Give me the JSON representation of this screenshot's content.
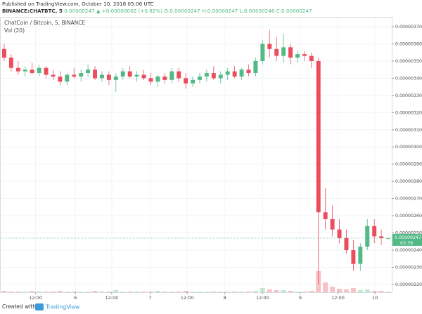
{
  "header": {
    "published": "Published on TradingView.com, October 10, 2018 05:06 UTC",
    "symbol": "BINANCE:CHATBTC, 5",
    "last": "0.00000247",
    "arrow": "▲",
    "change": "+0.00000002 (+0.82%)",
    "ohlc": "O:0.00000247 H:0.00000247 L:0.00000246 C:0.00000247"
  },
  "chart_data": {
    "type": "candlestick",
    "legend_title": "ChatCoin / Bitcoin, 5, BINANCE",
    "volume_title": "Vol (20)",
    "open": [
      3.57e-06,
      3.52e-06,
      3.46e-06,
      3.44e-06,
      3.45e-06,
      3.43e-06,
      3.46e-06,
      3.42e-06,
      3.41e-06,
      3.38e-06,
      3.42e-06,
      3.41e-06,
      3.43e-06,
      3.45e-06,
      3.4e-06,
      3.42e-06,
      3.39e-06,
      3.41e-06,
      3.44e-06,
      3.41e-06,
      3.42e-06,
      3.4e-06,
      3.38e-06,
      3.41e-06,
      3.39e-06,
      3.44e-06,
      3.4e-06,
      3.37e-06,
      3.39e-06,
      3.41e-06,
      3.43e-06,
      3.4e-06,
      3.42e-06,
      3.44e-06,
      3.41e-06,
      3.45e-06,
      3.43e-06,
      3.5e-06,
      3.6e-06,
      3.57e-06,
      3.53e-06,
      3.58e-06,
      3.52e-06,
      3.54e-06,
      3.53e-06,
      3.5e-06,
      2.62e-06,
      2.58e-06,
      2.52e-06,
      2.47e-06,
      2.4e-06,
      2.32e-06,
      2.42e-06,
      2.54e-06,
      2.48e-06,
      2.47e-06
    ],
    "high": [
      3.6e-06,
      3.54e-06,
      3.5e-06,
      3.47e-06,
      3.49e-06,
      3.48e-06,
      3.47e-06,
      3.45e-06,
      3.44e-06,
      3.43e-06,
      3.46e-06,
      3.45e-06,
      3.48e-06,
      3.47e-06,
      3.44e-06,
      3.44e-06,
      3.43e-06,
      3.46e-06,
      3.47e-06,
      3.44e-06,
      3.45e-06,
      3.43e-06,
      3.42e-06,
      3.43e-06,
      3.46e-06,
      3.46e-06,
      3.43e-06,
      3.41e-06,
      3.43e-06,
      3.45e-06,
      3.47e-06,
      3.44e-06,
      3.46e-06,
      3.47e-06,
      3.46e-06,
      3.48e-06,
      3.52e-06,
      3.62e-06,
      3.68e-06,
      3.64e-06,
      3.66e-06,
      3.6e-06,
      3.56e-06,
      3.56e-06,
      3.55e-06,
      3.52e-06,
      2.76e-06,
      2.66e-06,
      2.58e-06,
      2.52e-06,
      2.46e-06,
      2.44e-06,
      2.58e-06,
      2.58e-06,
      2.52e-06,
      2.47e-06
    ],
    "low": [
      3.5e-06,
      3.44e-06,
      3.42e-06,
      3.41e-06,
      3.42e-06,
      3.41e-06,
      3.4e-06,
      3.39e-06,
      3.36e-06,
      3.36e-06,
      3.4e-06,
      3.38e-06,
      3.41e-06,
      3.39e-06,
      3.38e-06,
      3.36e-06,
      3.32e-06,
      3.39e-06,
      3.4e-06,
      3.38e-06,
      3.39e-06,
      3.36e-06,
      3.35e-06,
      3.37e-06,
      3.37e-06,
      3.38e-06,
      3.34e-06,
      3.35e-06,
      3.37e-06,
      3.38e-06,
      3.39e-06,
      3.37e-06,
      3.39e-06,
      3.4e-06,
      3.39e-06,
      3.41e-06,
      3.41e-06,
      3.48e-06,
      3.52e-06,
      3.5e-06,
      3.49e-06,
      3.48e-06,
      3.49e-06,
      3.5e-06,
      3.46e-06,
      2.2e-06,
      2.52e-06,
      2.48e-06,
      2.44e-06,
      2.38e-06,
      2.28e-06,
      2.28e-06,
      2.4e-06,
      2.44e-06,
      2.43e-06,
      2.46e-06
    ],
    "close": [
      3.52e-06,
      3.46e-06,
      3.44e-06,
      3.45e-06,
      3.43e-06,
      3.46e-06,
      3.42e-06,
      3.41e-06,
      3.38e-06,
      3.42e-06,
      3.41e-06,
      3.43e-06,
      3.45e-06,
      3.4e-06,
      3.42e-06,
      3.39e-06,
      3.41e-06,
      3.44e-06,
      3.41e-06,
      3.42e-06,
      3.4e-06,
      3.38e-06,
      3.41e-06,
      3.39e-06,
      3.44e-06,
      3.4e-06,
      3.37e-06,
      3.39e-06,
      3.41e-06,
      3.43e-06,
      3.4e-06,
      3.42e-06,
      3.44e-06,
      3.41e-06,
      3.45e-06,
      3.43e-06,
      3.5e-06,
      3.6e-06,
      3.57e-06,
      3.53e-06,
      3.58e-06,
      3.52e-06,
      3.54e-06,
      3.53e-06,
      3.5e-06,
      2.62e-06,
      2.58e-06,
      2.52e-06,
      2.47e-06,
      2.4e-06,
      2.32e-06,
      2.42e-06,
      2.54e-06,
      2.48e-06,
      2.47e-06,
      2.47e-06
    ],
    "volume": [
      2,
      1,
      1,
      1,
      2,
      1,
      1,
      1,
      2,
      1,
      1,
      1,
      1,
      2,
      1,
      1,
      3,
      1,
      1,
      1,
      1,
      1,
      2,
      1,
      1,
      1,
      2,
      1,
      1,
      1,
      1,
      1,
      1,
      1,
      1,
      1,
      2,
      6,
      4,
      3,
      3,
      2,
      1,
      1,
      2,
      30,
      14,
      8,
      5,
      4,
      6,
      3,
      4,
      2,
      2,
      1
    ],
    "up_color": "#53b987",
    "down_color": "#eb4d5c",
    "xlim": [
      -0.5,
      55.5
    ],
    "xticks": [
      {
        "value": 4.5,
        "label": "12:00"
      },
      {
        "value": 10.2,
        "label": "6"
      },
      {
        "value": 15.4,
        "label": "12:00"
      },
      {
        "value": 20.9,
        "label": "7"
      },
      {
        "value": 26.2,
        "label": "12:00"
      },
      {
        "value": 31.6,
        "label": "8"
      },
      {
        "value": 37.0,
        "label": "12:00"
      },
      {
        "value": 42.4,
        "label": "9"
      },
      {
        "value": 47.8,
        "label": "12:00"
      },
      {
        "value": 53.1,
        "label": "10"
      }
    ],
    "ylim": [
      2.155e-06,
      3.753e-06
    ],
    "yticks": [
      {
        "value": 2.2e-06,
        "label": "0.00000220"
      },
      {
        "value": 2.3e-06,
        "label": "0.00000230"
      },
      {
        "value": 2.4e-06,
        "label": "0.00000240"
      },
      {
        "value": 2.5e-06,
        "label": "0.00000250"
      },
      {
        "value": 2.6e-06,
        "label": "0.00000260"
      },
      {
        "value": 2.7e-06,
        "label": "0.00000270"
      },
      {
        "value": 2.8e-06,
        "label": "0.00000280"
      },
      {
        "value": 2.9e-06,
        "label": "0.00000290"
      },
      {
        "value": 3e-06,
        "label": "0.00000300"
      },
      {
        "value": 3.1e-06,
        "label": "0.00000310"
      },
      {
        "value": 3.2e-06,
        "label": "0.00000320"
      },
      {
        "value": 3.3e-06,
        "label": "0.00000330"
      },
      {
        "value": 3.4e-06,
        "label": "0.00000340"
      },
      {
        "value": 3.5e-06,
        "label": "0.00000350"
      },
      {
        "value": 3.6e-06,
        "label": "0.00000360"
      },
      {
        "value": 3.7e-06,
        "label": "0.00000370"
      }
    ],
    "grid": true,
    "last_price": {
      "value": 2.47e-06,
      "label": "0.00000247"
    },
    "countdown": "03:39"
  },
  "footer": {
    "created": "Created with",
    "brand": "TradingView"
  }
}
